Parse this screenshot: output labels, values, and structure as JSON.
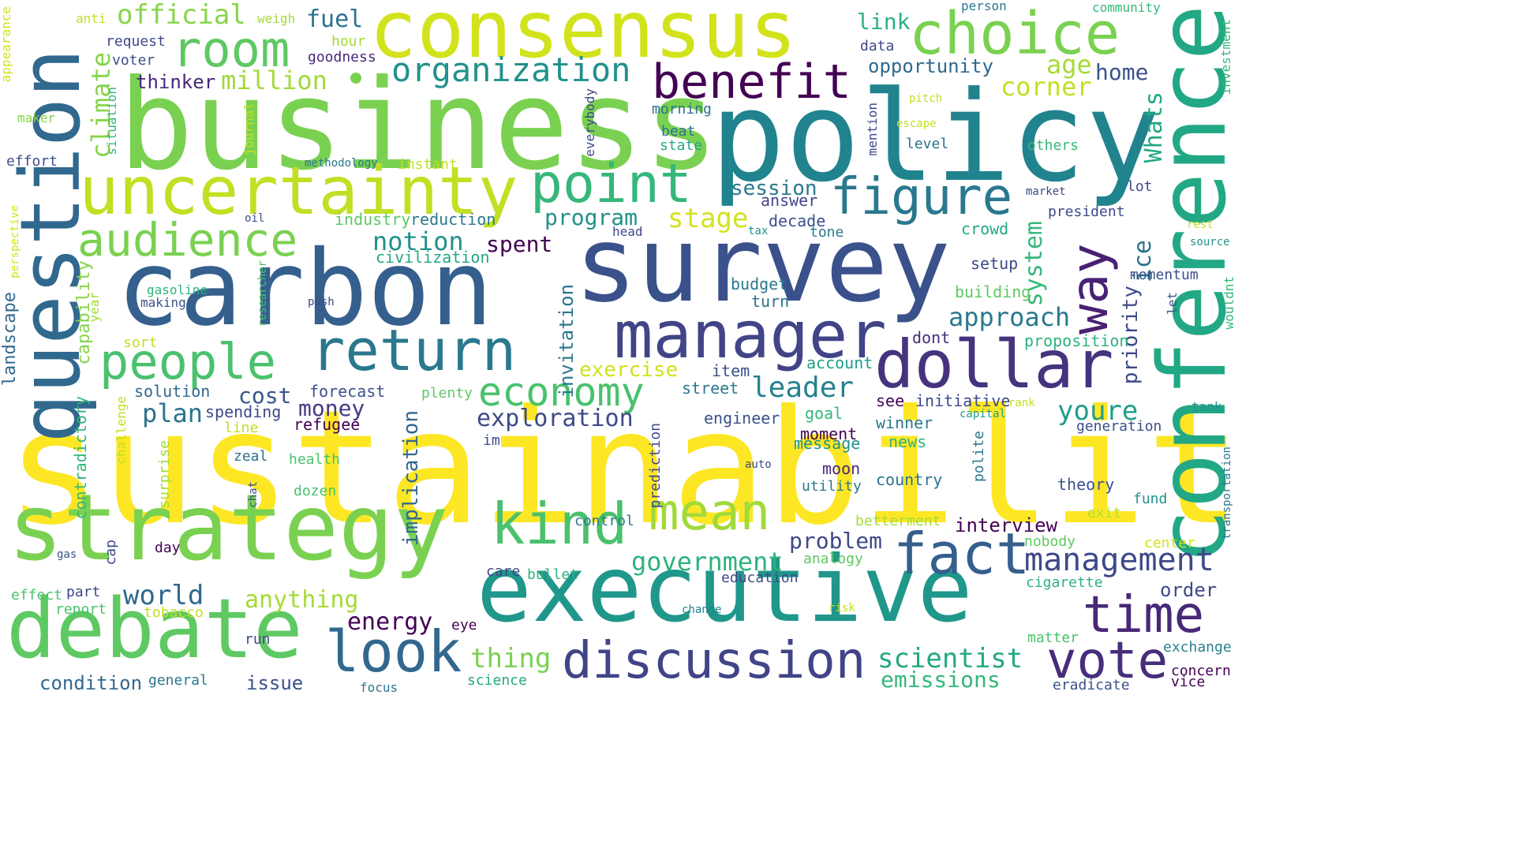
{
  "words": [
    {
      "text": "sustainability",
      "color": "#fde725"
    },
    {
      "text": "policy",
      "color": "#21838e"
    },
    {
      "text": "business",
      "color": "#7ad151"
    },
    {
      "text": "survey",
      "color": "#3b518b"
    },
    {
      "text": "carbon",
      "color": "#355f8d"
    },
    {
      "text": "consensus",
      "color": "#d2e21b"
    },
    {
      "text": "executive",
      "color": "#1f978b"
    },
    {
      "text": "strategy",
      "color": "#7ad151"
    },
    {
      "text": "conference",
      "color": "#22a884"
    },
    {
      "text": "question",
      "color": "#31688e"
    },
    {
      "text": "debate",
      "color": "#5ec962"
    },
    {
      "text": "uncertainty",
      "color": "#c2df23"
    },
    {
      "text": "dollar",
      "color": "#46337e"
    },
    {
      "text": "manager",
      "color": "#414487"
    },
    {
      "text": "choice",
      "color": "#7ad151"
    },
    {
      "text": "return",
      "color": "#2a788e"
    },
    {
      "text": "people",
      "color": "#4ac16d"
    },
    {
      "text": "audience",
      "color": "#7ad151"
    },
    {
      "text": "point",
      "color": "#35b779"
    },
    {
      "text": "figure",
      "color": "#2a788e"
    },
    {
      "text": "room",
      "color": "#5ec962"
    },
    {
      "text": "benefit",
      "color": "#440154"
    },
    {
      "text": "kind",
      "color": "#4ac16d"
    },
    {
      "text": "mean",
      "color": "#a0da39"
    },
    {
      "text": "fact",
      "color": "#355f8d"
    },
    {
      "text": "look",
      "color": "#31688e"
    },
    {
      "text": "discussion",
      "color": "#414487"
    },
    {
      "text": "time",
      "color": "#482878"
    },
    {
      "text": "vote",
      "color": "#472d7b"
    },
    {
      "text": "way",
      "color": "#482173"
    },
    {
      "text": "economy",
      "color": "#4ac16d"
    },
    {
      "text": "management",
      "color": "#3e4989"
    },
    {
      "text": "organization",
      "color": "#21918c"
    },
    {
      "text": "official",
      "color": "#86d549"
    },
    {
      "text": "approach",
      "color": "#2a788e"
    },
    {
      "text": "leader",
      "color": "#26828e"
    },
    {
      "text": "government",
      "color": "#2db27d"
    },
    {
      "text": "world",
      "color": "#31688e"
    },
    {
      "text": "anything",
      "color": "#a5db36"
    },
    {
      "text": "energy",
      "color": "#440154"
    },
    {
      "text": "scientist",
      "color": "#22a884"
    },
    {
      "text": "thing",
      "color": "#7ad151"
    },
    {
      "text": "emissions",
      "color": "#35b779"
    },
    {
      "text": "problem",
      "color": "#3e4989"
    },
    {
      "text": "interview",
      "color": "#440154"
    },
    {
      "text": "exploration",
      "color": "#3e4989"
    },
    {
      "text": "notion",
      "color": "#21918c"
    },
    {
      "text": "money",
      "color": "#443a83"
    },
    {
      "text": "plan",
      "color": "#2c728e"
    },
    {
      "text": "cost",
      "color": "#39568c"
    },
    {
      "text": "million",
      "color": "#a0da39"
    },
    {
      "text": "thinker",
      "color": "#482878"
    },
    {
      "text": "opportunity",
      "color": "#31688e"
    },
    {
      "text": "program",
      "color": "#21918c"
    },
    {
      "text": "stage",
      "color": "#d2e21b"
    },
    {
      "text": "session",
      "color": "#2a788e"
    },
    {
      "text": "age",
      "color": "#a5db36"
    },
    {
      "text": "corner",
      "color": "#c2df23"
    },
    {
      "text": "home",
      "color": "#3b518b"
    },
    {
      "text": "fuel",
      "color": "#2c728e"
    },
    {
      "text": "link",
      "color": "#2db27d"
    },
    {
      "text": "youre",
      "color": "#1f9e89"
    },
    {
      "text": "exercise",
      "color": "#d2e21b"
    },
    {
      "text": "spent",
      "color": "#440154"
    },
    {
      "text": "condition",
      "color": "#31688e"
    },
    {
      "text": "issue",
      "color": "#3b518b"
    },
    {
      "text": "order",
      "color": "#3e4989"
    },
    {
      "text": "climate",
      "color": "#86d549"
    },
    {
      "text": "system",
      "color": "#35b779"
    },
    {
      "text": "ice",
      "color": "#2c728e"
    },
    {
      "text": "priority",
      "color": "#3e4989"
    },
    {
      "text": "Whats",
      "color": "#22a884"
    },
    {
      "text": "implication",
      "color": "#31688e"
    },
    {
      "text": "invitation",
      "color": "#2a788e"
    },
    {
      "text": "landscape",
      "color": "#31688e"
    },
    {
      "text": "capability",
      "color": "#86d549"
    },
    {
      "text": "contradictory",
      "color": "#35b779"
    },
    {
      "text": "answer",
      "color": "#414487"
    },
    {
      "text": "decade",
      "color": "#3b518b"
    },
    {
      "text": "crowd",
      "color": "#22a884"
    },
    {
      "text": "reduction",
      "color": "#2a788e"
    },
    {
      "text": "industry",
      "color": "#5ec962"
    },
    {
      "text": "civilization",
      "color": "#22a884"
    },
    {
      "text": "forecast",
      "color": "#3b518b"
    },
    {
      "text": "solution",
      "color": "#31688e"
    },
    {
      "text": "refugee",
      "color": "#440154"
    },
    {
      "text": "spending",
      "color": "#3e4989"
    },
    {
      "text": "item",
      "color": "#3b518b"
    },
    {
      "text": "account",
      "color": "#1f9e89"
    },
    {
      "text": "street",
      "color": "#2a788e"
    },
    {
      "text": "dont",
      "color": "#472d7b"
    },
    {
      "text": "see",
      "color": "#440154"
    },
    {
      "text": "initiative",
      "color": "#3e4989"
    },
    {
      "text": "proposition",
      "color": "#2db27d"
    },
    {
      "text": "building",
      "color": "#5ec962"
    },
    {
      "text": "setup",
      "color": "#3e4989"
    },
    {
      "text": "momentum",
      "color": "#3b518b"
    },
    {
      "text": "budget",
      "color": "#2a788e"
    },
    {
      "text": "turn",
      "color": "#2c728e"
    },
    {
      "text": "engineer",
      "color": "#3b518b"
    },
    {
      "text": "goal",
      "color": "#35b779"
    },
    {
      "text": "winner",
      "color": "#2a788e"
    },
    {
      "text": "generation",
      "color": "#3b518b"
    },
    {
      "text": "moment",
      "color": "#440154"
    },
    {
      "text": "message",
      "color": "#21918c"
    },
    {
      "text": "news",
      "color": "#2db27d"
    },
    {
      "text": "moon",
      "color": "#482878"
    },
    {
      "text": "country",
      "color": "#2c728e"
    },
    {
      "text": "utility",
      "color": "#2a788e"
    },
    {
      "text": "theory",
      "color": "#3b518b"
    },
    {
      "text": "fund",
      "color": "#21918c"
    },
    {
      "text": "exit",
      "color": "#b5de2b"
    },
    {
      "text": "control",
      "color": "#2a788e"
    },
    {
      "text": "betterment",
      "color": "#a5db36"
    },
    {
      "text": "nobody",
      "color": "#5ec962"
    },
    {
      "text": "center",
      "color": "#d2e21b"
    },
    {
      "text": "analogy",
      "color": "#5ec962"
    },
    {
      "text": "education",
      "color": "#3e4989"
    },
    {
      "text": "cigarette",
      "color": "#2db27d"
    },
    {
      "text": "care",
      "color": "#414487"
    },
    {
      "text": "bullet",
      "color": "#2db27d"
    },
    {
      "text": "exchange",
      "color": "#26828e"
    },
    {
      "text": "concern",
      "color": "#440154"
    },
    {
      "text": "vice",
      "color": "#440154"
    },
    {
      "text": "eradicate",
      "color": "#3b518b"
    },
    {
      "text": "matter",
      "color": "#4ac16d"
    },
    {
      "text": "eye",
      "color": "#440154"
    },
    {
      "text": "run",
      "color": "#3e4989"
    },
    {
      "text": "general",
      "color": "#2a788e"
    },
    {
      "text": "focus",
      "color": "#2a788e"
    },
    {
      "text": "science",
      "color": "#22a884"
    },
    {
      "text": "tobacco",
      "color": "#c2df23"
    },
    {
      "text": "report",
      "color": "#4ac16d"
    },
    {
      "text": "part",
      "color": "#3e4989"
    },
    {
      "text": "effect",
      "color": "#4ac16d"
    },
    {
      "text": "day",
      "color": "#440154"
    },
    {
      "text": "cap",
      "color": "#3e4989"
    },
    {
      "text": "gas",
      "color": "#3b518b"
    },
    {
      "text": "chat",
      "color": "#3e4989"
    },
    {
      "text": "dozen",
      "color": "#4ac16d"
    },
    {
      "text": "health",
      "color": "#4ac16d"
    },
    {
      "text": "zeal",
      "color": "#2c728e"
    },
    {
      "text": "line",
      "color": "#c2df23"
    },
    {
      "text": "surprise",
      "color": "#a5db36"
    },
    {
      "text": "challenge",
      "color": "#c2df23"
    },
    {
      "text": "im",
      "color": "#3e4989"
    },
    {
      "text": "prediction",
      "color": "#3e4989"
    },
    {
      "text": "auto",
      "color": "#3e4989"
    },
    {
      "text": "change",
      "color": "#26828e"
    },
    {
      "text": "risk",
      "color": "#c2df23"
    },
    {
      "text": "plenty",
      "color": "#5ec962"
    },
    {
      "text": "sort",
      "color": "#c2df23"
    },
    {
      "text": "year",
      "color": "#a5db36"
    },
    {
      "text": "push",
      "color": "#3e4989"
    },
    {
      "text": "researcher",
      "color": "#4ac16d"
    },
    {
      "text": "gasoline",
      "color": "#2db27d"
    },
    {
      "text": "making",
      "color": "#3b518b"
    },
    {
      "text": "oil",
      "color": "#3b518b"
    },
    {
      "text": "perspective",
      "color": "#d2e21b"
    },
    {
      "text": "effort",
      "color": "#3b518b"
    },
    {
      "text": "maker",
      "color": "#86d549"
    },
    {
      "text": "appearance",
      "color": "#d2e21b"
    },
    {
      "text": "anti",
      "color": "#c2df23"
    },
    {
      "text": "request",
      "color": "#3e4989"
    },
    {
      "text": "voter",
      "color": "#3b518b"
    },
    {
      "text": "situation",
      "color": "#35b779"
    },
    {
      "text": "weigh",
      "color": "#a5db36"
    },
    {
      "text": "hour",
      "color": "#a5db36"
    },
    {
      "text": "goodness",
      "color": "#482878"
    },
    {
      "text": "journal",
      "color": "#c2df23"
    },
    {
      "text": "methodology",
      "color": "#2a788e"
    },
    {
      "text": "instant",
      "color": "#c2df23"
    },
    {
      "text": "data",
      "color": "#3e4989"
    },
    {
      "text": "everybody",
      "color": "#3e4989"
    },
    {
      "text": "morning",
      "color": "#2c728e"
    },
    {
      "text": "beat",
      "color": "#2c728e"
    },
    {
      "text": "state",
      "color": "#22a884"
    },
    {
      "text": "mention",
      "color": "#3e4989"
    },
    {
      "text": "level",
      "color": "#2c728e"
    },
    {
      "text": "head",
      "color": "#3e4989"
    },
    {
      "text": "tax",
      "color": "#21918c"
    },
    {
      "text": "tone",
      "color": "#2a788e"
    },
    {
      "text": "person",
      "color": "#2a788e"
    },
    {
      "text": "community",
      "color": "#35b779"
    },
    {
      "text": "pitch",
      "color": "#c2df23"
    },
    {
      "text": "escape",
      "color": "#c2df23"
    },
    {
      "text": "others",
      "color": "#35b779"
    },
    {
      "text": "lot",
      "color": "#3e4989"
    },
    {
      "text": "market",
      "color": "#3e4989"
    },
    {
      "text": "president",
      "color": "#3e4989"
    },
    {
      "text": "rest",
      "color": "#c2df23"
    },
    {
      "text": "source",
      "color": "#21918c"
    },
    {
      "text": "investment",
      "color": "#35b779"
    },
    {
      "text": "let",
      "color": "#3b518b"
    },
    {
      "text": "wouldnt",
      "color": "#35b779"
    },
    {
      "text": "polite",
      "color": "#2a788e"
    },
    {
      "text": "capital",
      "color": "#1f9e89"
    },
    {
      "text": "rank",
      "color": "#c2df23"
    },
    {
      "text": "tank",
      "color": "#21918c"
    },
    {
      "text": "transportation",
      "color": "#2a788e"
    }
  ]
}
